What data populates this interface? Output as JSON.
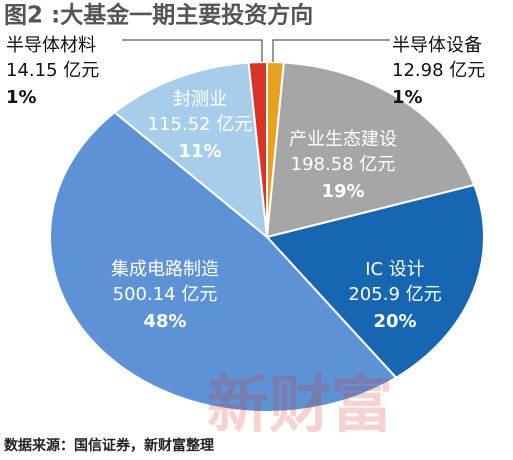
{
  "chart_data": {
    "type": "pie",
    "title": "图2 :大基金一期主要投资方向",
    "categories": [
      "半导体设备",
      "产业生态建设",
      "IC 设计",
      "集成电路制造",
      "封测业",
      "半导体材料"
    ],
    "values": [
      12.98,
      198.58,
      205.9,
      500.14,
      115.52,
      14.15
    ],
    "value_labels": [
      "12.98 亿元",
      "198.58 亿元",
      "205.9 亿元",
      "500.14 亿元",
      "115.52 亿元",
      "14.15 亿元"
    ],
    "percent_labels": [
      "1%",
      "19%",
      "20%",
      "48%",
      "11%",
      "1%"
    ],
    "colors": [
      "#e9a21f",
      "#a6a6a6",
      "#1766b2",
      "#5d93d6",
      "#a8cdea",
      "#d9342a"
    ],
    "source": "数据来源：国信证券，新财富整理",
    "watermark": "新财富"
  }
}
